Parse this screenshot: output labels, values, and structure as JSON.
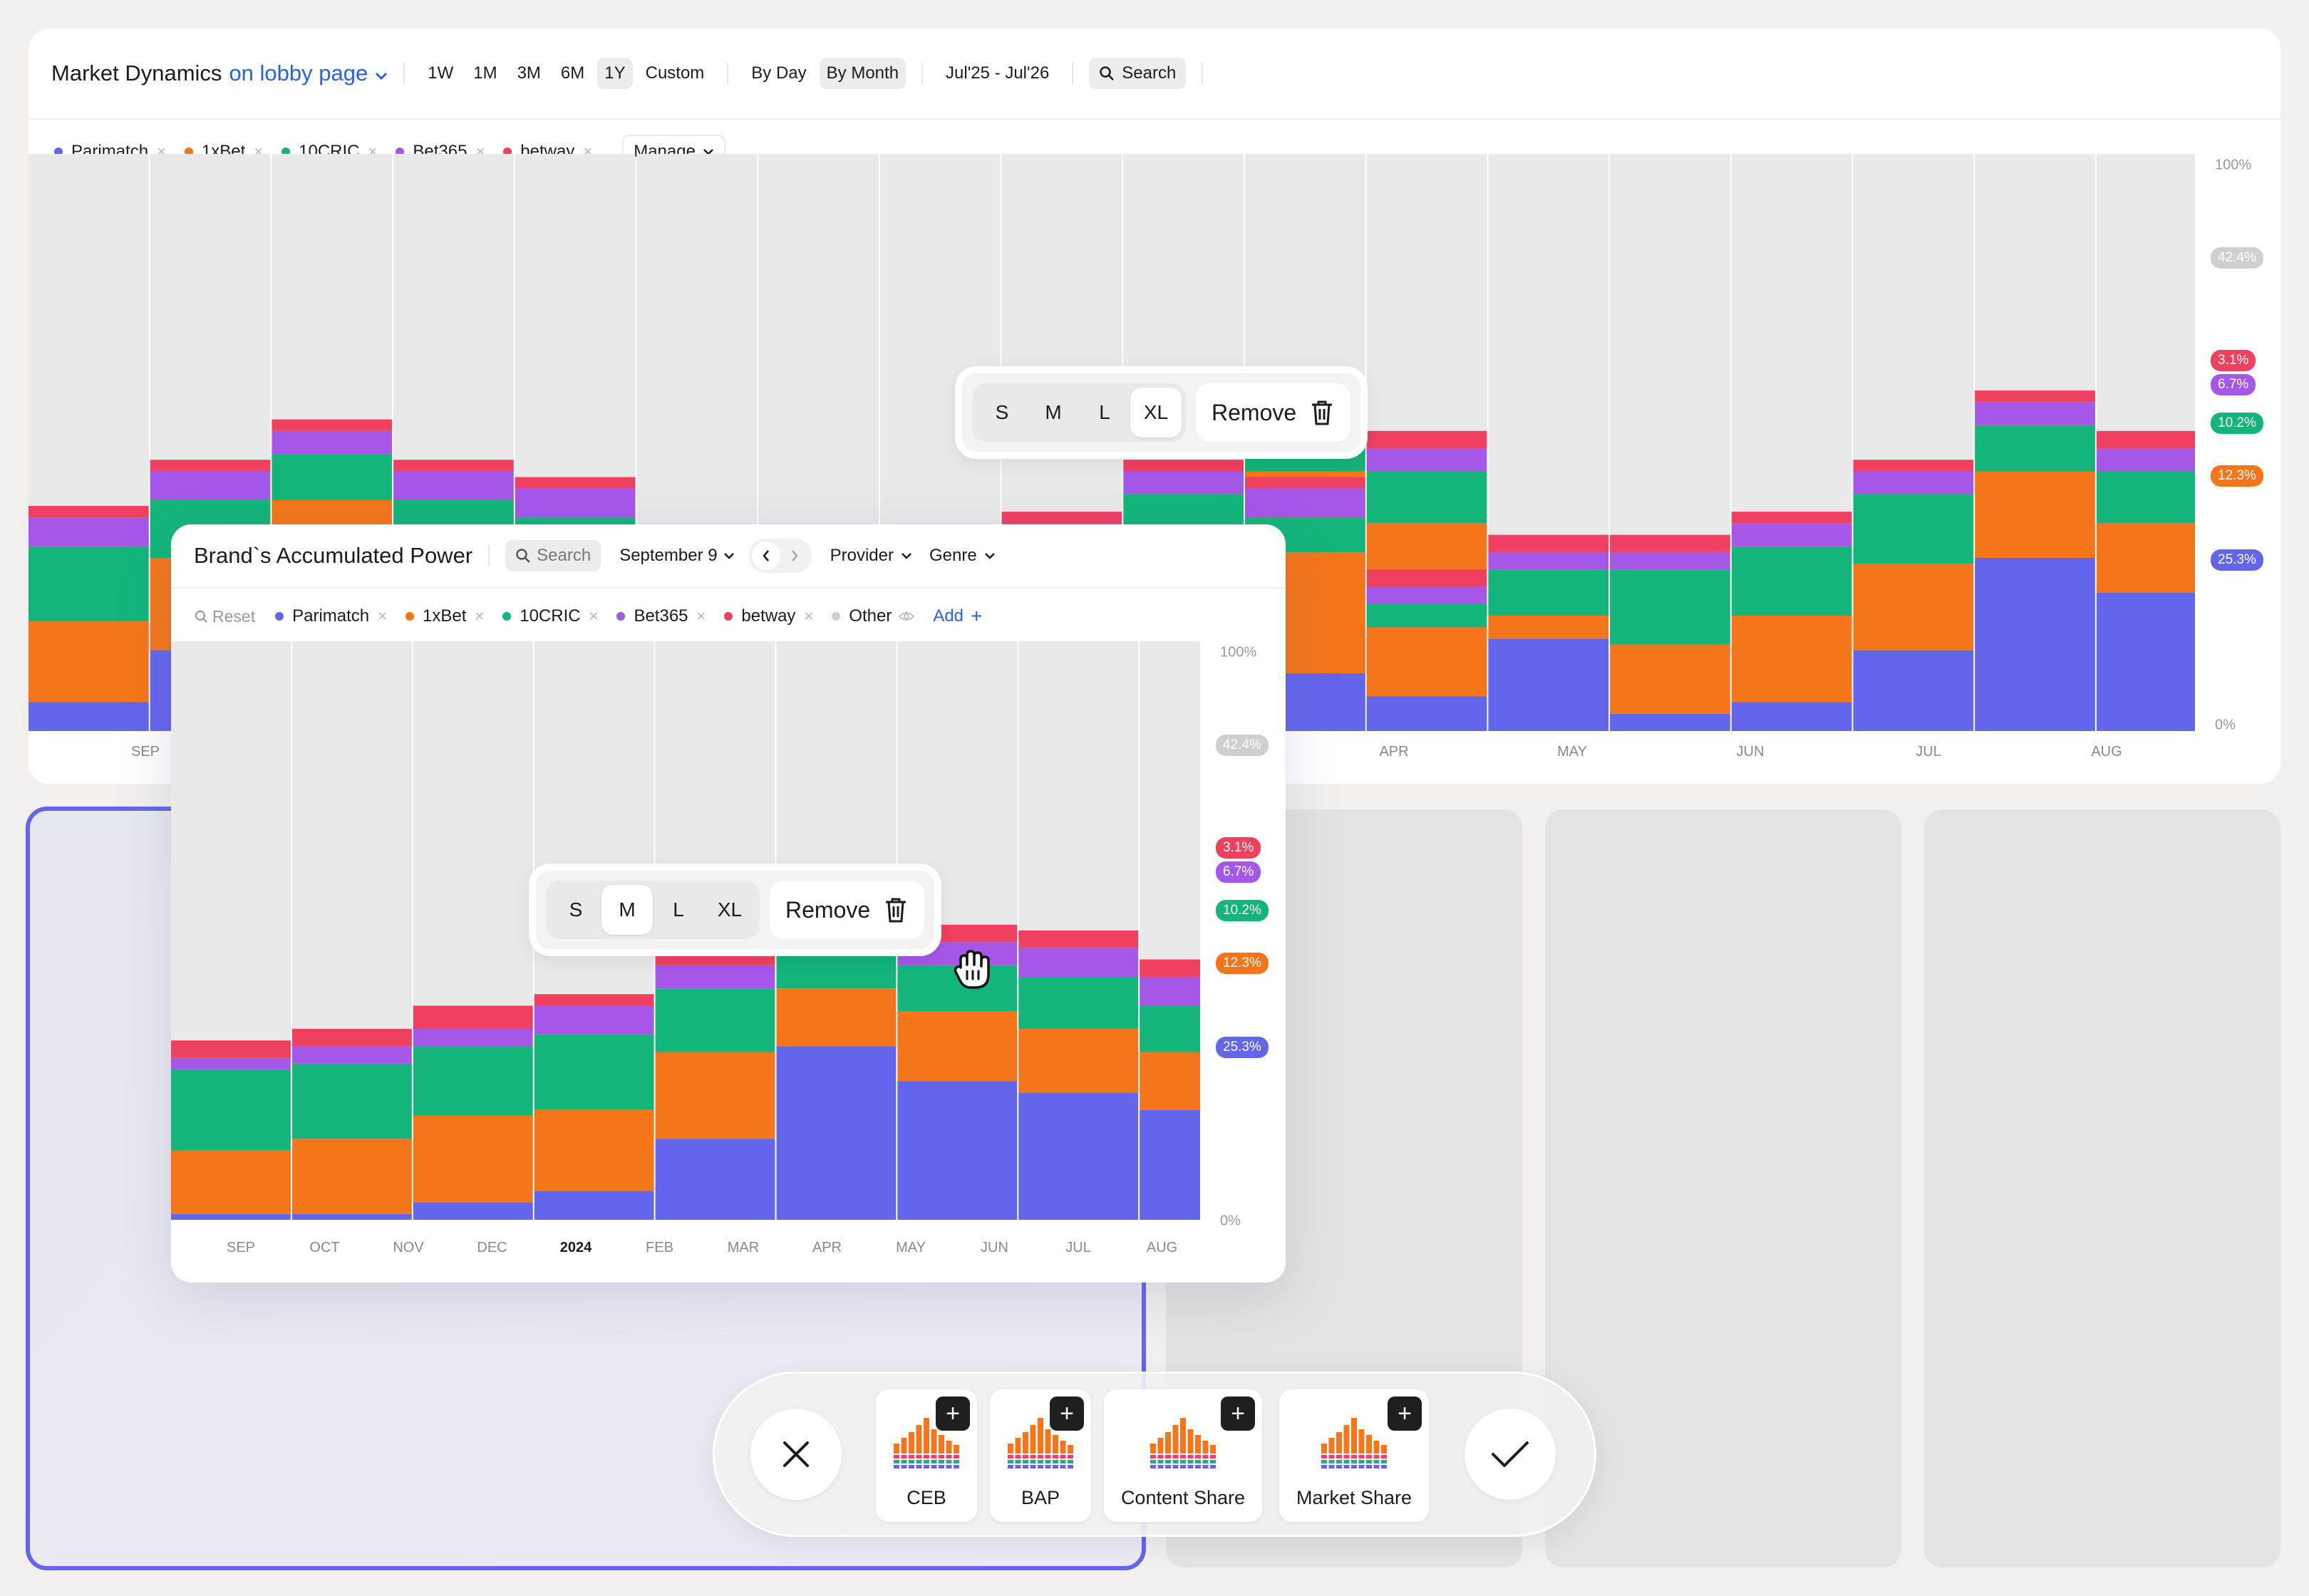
{
  "colors": {
    "parimatch": "#6366eb",
    "onexbet": "#f5761a",
    "tencric": "#13b57b",
    "bet365": "#a557e8",
    "betway": "#ef405f",
    "other": "#cfcfcf",
    "column_bg": "#e9e9e9",
    "accent": "#6366eb",
    "link": "#2563eb"
  },
  "market": {
    "title": "Market Dynamics",
    "context": "on lobby page",
    "ranges": [
      "1W",
      "1M",
      "3M",
      "6M",
      "1Y",
      "Custom"
    ],
    "active_range": "1Y",
    "granularity": [
      "By Day",
      "By Month"
    ],
    "active_granularity": "By Month",
    "period": "Jul'25 - Jul'26",
    "search_label": "Search",
    "legend": [
      {
        "name": "Parimatch",
        "key": "parimatch"
      },
      {
        "name": "1xBet",
        "key": "onexbet"
      },
      {
        "name": "10CRIC",
        "key": "tencric"
      },
      {
        "name": "Bet365",
        "key": "bet365"
      },
      {
        "name": "betway",
        "key": "betway"
      }
    ],
    "manage_label": "Manage",
    "axis_top": "100%",
    "axis_bottom": "0%",
    "chips": [
      {
        "label": "42.4%",
        "key": "other"
      },
      {
        "label": "3.1%",
        "key": "betway"
      },
      {
        "label": "6.7%",
        "key": "bet365"
      },
      {
        "label": "10.2%",
        "key": "tencric"
      },
      {
        "label": "12.3%",
        "key": "onexbet"
      },
      {
        "label": "25.3%",
        "key": "parimatch"
      }
    ],
    "month_labels": [
      "SEP",
      "APR",
      "MAY",
      "JUN",
      "JUL",
      "AUG"
    ]
  },
  "size_toolbar_top": {
    "options": [
      "S",
      "M",
      "L",
      "XL"
    ],
    "active": "XL",
    "remove_label": "Remove"
  },
  "size_toolbar_inner": {
    "options": [
      "S",
      "M",
      "L",
      "XL"
    ],
    "active": "M",
    "remove_label": "Remove"
  },
  "bap": {
    "title": "Brand`s Accumulated Power",
    "search_label": "Search",
    "date_label": "September 9",
    "filters": [
      "Provider",
      "Genre"
    ],
    "reset_label": "Reset",
    "legend": [
      {
        "name": "Parimatch",
        "key": "parimatch"
      },
      {
        "name": "1xBet",
        "key": "onexbet"
      },
      {
        "name": "10CRIC",
        "key": "tencric"
      },
      {
        "name": "Bet365",
        "key": "bet365"
      },
      {
        "name": "betway",
        "key": "betway"
      }
    ],
    "other_label": "Other",
    "add_label": "Add",
    "axis_top": "100%",
    "axis_bottom": "0%",
    "chips": [
      {
        "label": "42.4%",
        "key": "other"
      },
      {
        "label": "3.1%",
        "key": "betway"
      },
      {
        "label": "6.7%",
        "key": "bet365"
      },
      {
        "label": "10.2%",
        "key": "tencric"
      },
      {
        "label": "12.3%",
        "key": "onexbet"
      },
      {
        "label": "25.3%",
        "key": "parimatch"
      }
    ]
  },
  "chart_data": [
    {
      "type": "bar",
      "stacked": true,
      "y_unit": "%",
      "ylim": [
        0,
        100
      ],
      "categories": [
        "SEP",
        "OCT",
        "NOV",
        "DEC",
        "JAN",
        "FEB",
        "MAR",
        "APR",
        "MAY",
        "JUN",
        "JUL",
        "AUG"
      ],
      "series": [
        {
          "name": "Parimatch",
          "values": [
            5,
            14,
            18,
            11,
            10,
            6,
            16,
            3,
            5,
            14,
            30,
            24
          ]
        },
        {
          "name": "1xBet",
          "values": [
            14,
            16,
            22,
            21,
            21,
            12,
            4,
            12,
            15,
            15,
            15,
            12
          ]
        },
        {
          "name": "10CRIC",
          "values": [
            13,
            10,
            8,
            8,
            6,
            4,
            8,
            13,
            12,
            12,
            8,
            9
          ]
        },
        {
          "name": "Bet365",
          "values": [
            5,
            5,
            4,
            5,
            5,
            3,
            3,
            3,
            4,
            4,
            4,
            4
          ]
        },
        {
          "name": "betway",
          "values": [
            2,
            2,
            2,
            2,
            2,
            3,
            3,
            3,
            2,
            2,
            2,
            3
          ]
        }
      ],
      "axis_ticks": [
        "100%",
        "0%"
      ],
      "legend_position": "top-left"
    },
    {
      "type": "bar",
      "stacked": true,
      "y_unit": "%",
      "ylim": [
        0,
        100
      ],
      "categories": [
        "SEP",
        "OCT",
        "NOV",
        "DEC",
        "2024",
        "FEB",
        "MAR",
        "APR",
        "MAY",
        "JUN",
        "JUL",
        "AUG"
      ],
      "series": [
        {
          "name": "Parimatch",
          "values": [
            1,
            1,
            3,
            5,
            14,
            30,
            24,
            22,
            19,
            13,
            16,
            0
          ]
        },
        {
          "name": "1xBet",
          "values": [
            11,
            13,
            15,
            14,
            15,
            10,
            12,
            11,
            10,
            12,
            15,
            0
          ]
        },
        {
          "name": "10CRIC",
          "values": [
            14,
            13,
            12,
            13,
            11,
            8,
            8,
            9,
            8,
            13,
            14,
            0
          ]
        },
        {
          "name": "Bet365",
          "values": [
            2,
            3,
            3,
            5,
            4,
            4,
            4,
            5,
            5,
            3,
            3,
            0
          ]
        },
        {
          "name": "betway",
          "values": [
            3,
            3,
            4,
            2,
            2,
            3,
            3,
            3,
            3,
            2,
            2,
            0
          ]
        }
      ],
      "axis_ticks": [
        "100%",
        "0%"
      ],
      "legend_position": "top-left"
    }
  ],
  "placeholders_count": 3,
  "tray": {
    "widgets": [
      {
        "label": "CEB"
      },
      {
        "label": "BAP"
      },
      {
        "label": "Content Share"
      },
      {
        "label": "Market Share"
      }
    ]
  }
}
